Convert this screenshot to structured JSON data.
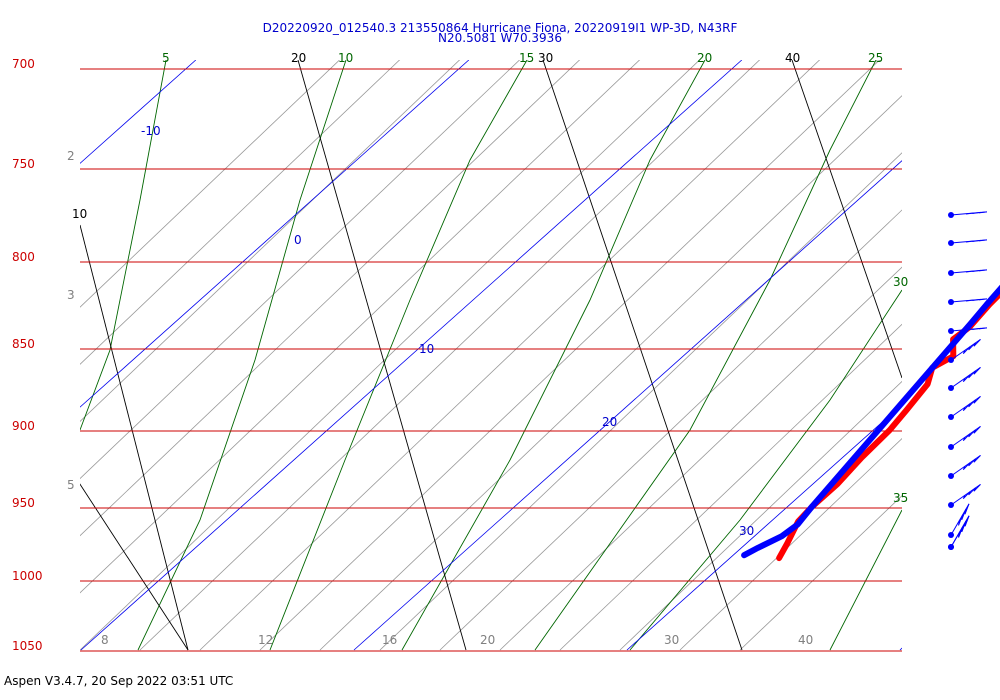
{
  "chart_data": {
    "type": "line",
    "title_line1": "D20220920_012540.3 213550864 Hurricane Fiona, 20220919I1 WP-3D, N43RF",
    "title_line2": "N20.5081 W70.3936",
    "footer": "Aspen V3.4.7, 20 Sep 2022  03:51 UTC",
    "pressure_levels": [
      700,
      750,
      800,
      850,
      900,
      950,
      1000,
      1050
    ],
    "pressure_labels": [
      "700",
      "750",
      "800",
      "850",
      "900",
      "950",
      "1000",
      "1050"
    ],
    "isotherms": [
      -10,
      0,
      10,
      20,
      30
    ],
    "isotherm_labels": [
      "-10",
      "0",
      "10",
      "20",
      "30"
    ],
    "dry_adiabats": [
      10,
      20,
      30,
      40
    ],
    "dry_adiabat_labels": [
      "10",
      "20",
      "30",
      "40"
    ],
    "moist_adiabats": [
      5,
      10,
      15,
      20,
      25,
      30,
      35
    ],
    "moist_adiabat_labels": [
      "5",
      "10",
      "15",
      "20",
      "25",
      "30",
      "35"
    ],
    "mixing_ratio_labels": [
      {
        "label": "2",
        "p": 750
      },
      {
        "label": "3",
        "p": 825
      },
      {
        "label": "5",
        "p": 945
      },
      {
        "label": "8",
        "p": 1050
      },
      {
        "label": "12",
        "p": 1050
      },
      {
        "label": "16",
        "p": 1050
      },
      {
        "label": "20",
        "p": 1050
      },
      {
        "label": "30",
        "p": 1050
      },
      {
        "label": "40",
        "p": 1050
      }
    ],
    "series": [
      {
        "name": "Temperature",
        "color": "#ff0000",
        "points": [
          [
            758,
            18.7
          ],
          [
            770,
            18.9
          ],
          [
            785,
            19.0
          ],
          [
            800,
            19.1
          ],
          [
            812,
            19.0
          ],
          [
            825,
            19.1
          ],
          [
            838,
            19.3
          ],
          [
            845,
            19.2
          ],
          [
            855,
            19.9
          ],
          [
            862,
            19.6
          ],
          [
            872,
            20.1
          ],
          [
            888,
            20.4
          ],
          [
            900,
            20.6
          ],
          [
            918,
            20.7
          ],
          [
            935,
            20.9
          ],
          [
            950,
            20.9
          ],
          [
            960,
            21.0
          ],
          [
            975,
            21.5
          ],
          [
            985,
            21.8
          ]
        ]
      },
      {
        "name": "Dew point",
        "color": "#0000ff",
        "points": [
          [
            758,
            18.7
          ],
          [
            770,
            18.9
          ],
          [
            785,
            19.0
          ],
          [
            800,
            18.9
          ],
          [
            812,
            18.8
          ],
          [
            825,
            19.0
          ],
          [
            836,
            19.2
          ],
          [
            950,
            20.9
          ],
          [
            962,
            21.1
          ],
          [
            970,
            21.0
          ],
          [
            978,
            20.6
          ],
          [
            983,
            20.4
          ]
        ]
      }
    ],
    "wind_barb_levels": [
      780,
      798,
      815,
      832,
      850,
      865,
      882,
      898,
      915,
      932,
      948,
      965,
      980,
      988
    ]
  }
}
